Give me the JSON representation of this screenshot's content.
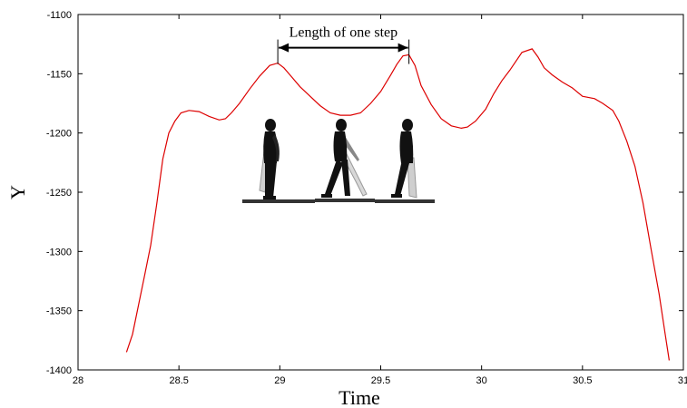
{
  "chart_data": {
    "type": "line",
    "title": "",
    "xlabel": "Time",
    "ylabel": "Y",
    "xlim": [
      28,
      31
    ],
    "ylim": [
      -1400,
      -1100
    ],
    "x_ticks": [
      "28",
      "28.5",
      "29",
      "29.5",
      "30",
      "30.5",
      "31"
    ],
    "y_ticks": [
      "-1100",
      "-1150",
      "-1200",
      "-1250",
      "-1300",
      "-1350",
      "-1400"
    ],
    "grid": false,
    "legend": "none",
    "series_color": "#dd0000",
    "series": [
      {
        "x": [
          28.24,
          28.27,
          28.3,
          28.33,
          28.36,
          28.39,
          28.42,
          28.45,
          28.48,
          28.51,
          28.55,
          28.6,
          28.65,
          28.7,
          28.73,
          28.76,
          28.8,
          28.85,
          28.9,
          28.95,
          28.99,
          29.02,
          29.05,
          29.1,
          29.15,
          29.2,
          29.25,
          29.3,
          29.35,
          29.4,
          29.45,
          29.5,
          29.55,
          29.58,
          29.61,
          29.64,
          29.67,
          29.7,
          29.75,
          29.8,
          29.85,
          29.9,
          29.93,
          29.97,
          30.02,
          30.06,
          30.1,
          30.14,
          30.2,
          30.25,
          30.28,
          30.31,
          30.35,
          30.4,
          30.45,
          30.5,
          30.56,
          30.6,
          30.65,
          30.68,
          30.72,
          30.76,
          30.8,
          30.84,
          30.88,
          30.91,
          30.93
        ],
        "y": [
          -1385,
          -1370,
          -1345,
          -1320,
          -1295,
          -1260,
          -1222,
          -1200,
          -1190,
          -1183,
          -1181,
          -1182,
          -1186,
          -1189,
          -1188,
          -1183,
          -1175,
          -1163,
          -1152,
          -1143,
          -1141,
          -1145,
          -1151,
          -1161,
          -1169,
          -1177,
          -1183,
          -1185,
          -1185,
          -1183,
          -1175,
          -1165,
          -1151,
          -1142,
          -1135,
          -1134,
          -1143,
          -1160,
          -1176,
          -1188,
          -1194,
          -1196,
          -1195,
          -1190,
          -1180,
          -1167,
          -1156,
          -1147,
          -1132,
          -1129,
          -1136,
          -1145,
          -1151,
          -1157,
          -1162,
          -1169,
          -1171,
          -1175,
          -1181,
          -1190,
          -1207,
          -1228,
          -1259,
          -1298,
          -1336,
          -1370,
          -1392
        ]
      }
    ],
    "annotation": {
      "text": "Length of one step",
      "x_start": 28.99,
      "x_end": 29.64,
      "y": -1128
    },
    "inset": "walking-figures"
  }
}
